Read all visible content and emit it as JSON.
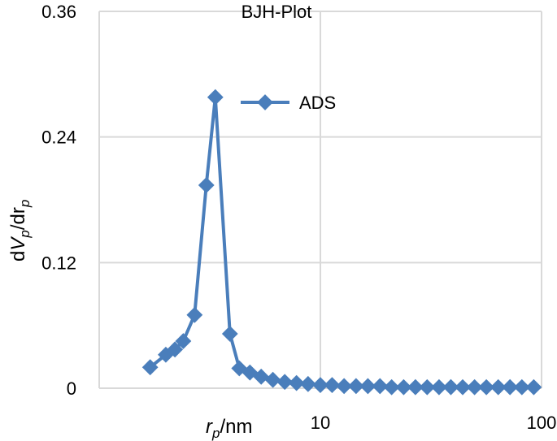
{
  "chart_data": {
    "type": "line",
    "title": "BJH-Plot",
    "xlabel": {
      "main": "r",
      "sub": "p",
      "unit": "/nm"
    },
    "ylabel": {
      "d1": "d",
      "v": "V",
      "sub1": "p",
      "slash": "/",
      "d2": "dr",
      "sub2": "p"
    },
    "x_scale": "log",
    "xlim": [
      1,
      100
    ],
    "ylim": [
      0,
      0.36
    ],
    "y_ticks": [
      "0",
      "0.12",
      "0.24",
      "0.36"
    ],
    "x_ticks": [
      "10",
      "100"
    ],
    "grid": true,
    "legend_position": "top-right",
    "colors": {
      "series": "#4a7ebb",
      "grid": "#d9d9d9",
      "axis": "#d9d9d9"
    },
    "series": [
      {
        "name": "ADS",
        "x": [
          1.7,
          2.0,
          2.2,
          2.4,
          2.7,
          3.05,
          3.35,
          3.9,
          4.3,
          4.8,
          5.4,
          6.1,
          6.9,
          7.8,
          8.8,
          10.0,
          11.3,
          12.8,
          14.5,
          16.4,
          18.6,
          21.0,
          23.8,
          26.9,
          30.4,
          34.4,
          38.9,
          44.0,
          49.8,
          56.3,
          63.7,
          72.0,
          81.5,
          92.2
        ],
        "y": [
          0.02,
          0.032,
          0.037,
          0.045,
          0.07,
          0.194,
          0.278,
          0.052,
          0.019,
          0.015,
          0.011,
          0.008,
          0.006,
          0.005,
          0.004,
          0.003,
          0.003,
          0.002,
          0.002,
          0.002,
          0.002,
          0.001,
          0.001,
          0.001,
          0.001,
          0.001,
          0.001,
          0.001,
          0.001,
          0.001,
          0.001,
          0.001,
          0.001,
          0.001
        ]
      }
    ]
  }
}
